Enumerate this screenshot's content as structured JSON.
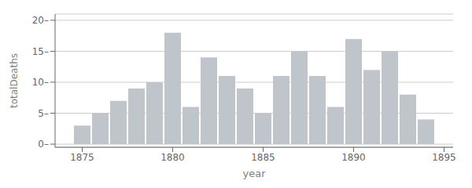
{
  "chart_data": {
    "type": "bar",
    "x": [
      1875,
      1876,
      1877,
      1878,
      1879,
      1880,
      1881,
      1882,
      1883,
      1884,
      1885,
      1886,
      1887,
      1888,
      1889,
      1890,
      1891,
      1892,
      1893,
      1894
    ],
    "values": [
      3,
      5,
      7,
      9,
      10,
      18,
      6,
      14,
      11,
      9,
      5,
      11,
      15,
      11,
      6,
      17,
      12,
      15,
      8,
      4
    ],
    "color": "#c0c5cc",
    "xlabel": "year",
    "ylabel": "totalDeaths",
    "xlim": [
      1873.5,
      1895.5
    ],
    "ylim": [
      -0.5,
      21
    ],
    "xticks": [
      1875,
      1880,
      1885,
      1890,
      1895
    ],
    "yticks": [
      {
        "value": 0,
        "label": "0–"
      },
      {
        "value": 5,
        "label": "5–"
      },
      {
        "value": 10,
        "label": "10–"
      },
      {
        "value": 15,
        "label": "15–"
      },
      {
        "value": 20,
        "label": "20–"
      }
    ],
    "grid": true
  }
}
